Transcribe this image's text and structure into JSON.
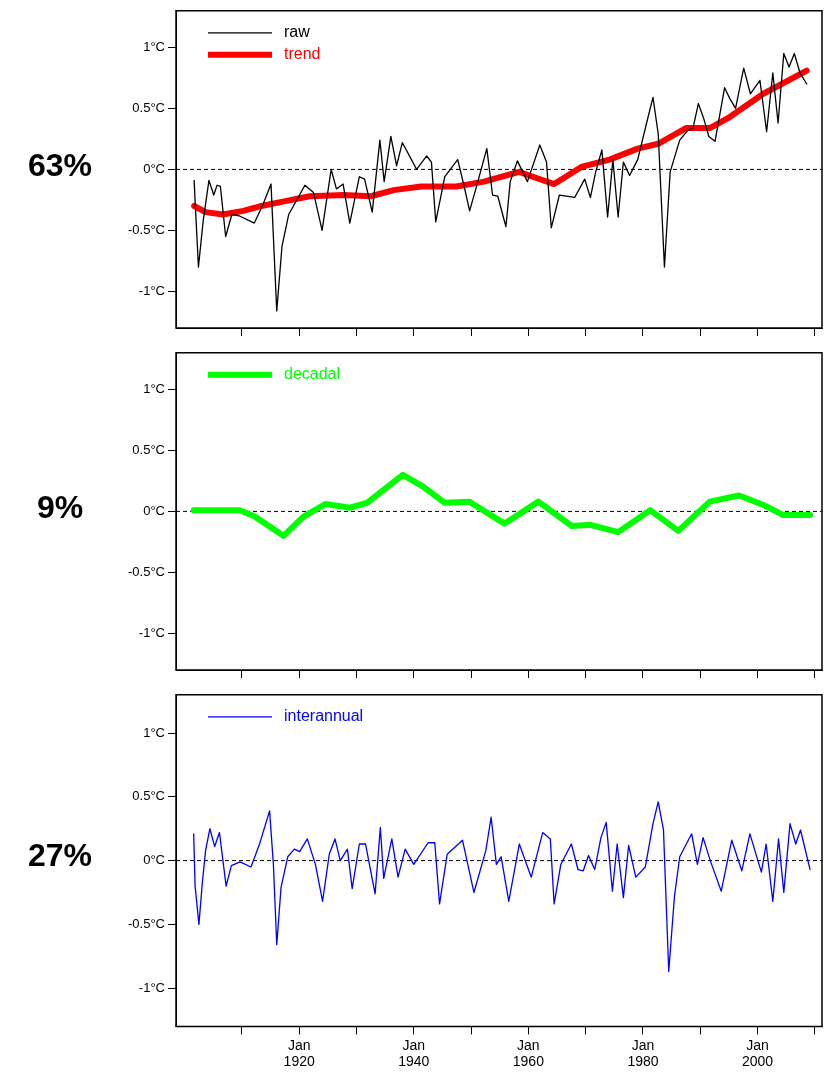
{
  "chart_data": [
    {
      "type": "line",
      "annotations": [
        "63%"
      ],
      "legend": "top left",
      "tick_labels": "y",
      "grid": false,
      "xlim": [
        "1898-07",
        "2011-04"
      ],
      "ylim": [
        -1.3,
        1.3
      ],
      "xticks": [
        {
          "value": "1910-01",
          "label": null
        },
        {
          "value": "1920-01",
          "label": null
        },
        {
          "value": "1930-01",
          "label": null
        },
        {
          "value": "1940-01",
          "label": null
        },
        {
          "value": "1950-01",
          "label": null
        },
        {
          "value": "1960-01",
          "label": null
        },
        {
          "value": "1970-01",
          "label": null
        },
        {
          "value": "1980-01",
          "label": null
        },
        {
          "value": "1990-01",
          "label": null
        },
        {
          "value": "2000-01",
          "label": null
        },
        {
          "value": "2010-01",
          "label": null
        }
      ],
      "yticks": [
        {
          "value": -1,
          "label": "-1°C"
        },
        {
          "value": -0.5,
          "label": "-0.5°C"
        },
        {
          "value": 0,
          "label": "0°C"
        },
        {
          "value": 0.5,
          "label": "0.5°C"
        },
        {
          "value": 1,
          "label": "1°C"
        }
      ],
      "ref_lines": [
        {
          "axis": "y",
          "value": 0,
          "color": "#000000",
          "line_style": "dashed"
        }
      ],
      "series": [
        {
          "name": "raw",
          "color": "#000000",
          "x": [
            "1901-09",
            "1901-11",
            "1902-06",
            "1903-04",
            "1904-04",
            "1905-02",
            "1905-09",
            "1906-04",
            "1907-03",
            "1908-04",
            "1909-07",
            "1912-03",
            "1913-09",
            "1915-02",
            "1916-02",
            "1917-01",
            "1918-03",
            "1921-01",
            "1922-07",
            "1924-01",
            "1925-08",
            "1926-07",
            "1927-09",
            "1928-11",
            "1930-07",
            "1931-06",
            "1932-10",
            "1934-02",
            "1934-11",
            "1936-01",
            "1937-01",
            "1938-01",
            "1940-07",
            "1942-04",
            "1943-02",
            "1943-11",
            "1945-06",
            "1947-09",
            "1948-10",
            "1949-10",
            "1950-11",
            "1952-10",
            "1953-10",
            "1954-09",
            "1956-02",
            "1956-11",
            "1958-02",
            "1959-11",
            "1962-01",
            "1963-03",
            "1964-01",
            "1965-06",
            "1968-02",
            "1969-11",
            "1970-11",
            "1971-10",
            "1972-11",
            "1973-11",
            "1974-10",
            "1975-09",
            "1976-08",
            "1977-09",
            "1979-02",
            "1980-08",
            "1981-10",
            "1982-09",
            "1983-10",
            "1984-10",
            "1986-06",
            "1987-11",
            "1988-10",
            "1989-09",
            "1990-08",
            "1991-07",
            "1992-08",
            "1994-04",
            "1995-03",
            "1996-03",
            "1997-08",
            "1998-10",
            "2000-06",
            "2001-08",
            "2002-09",
            "2003-08",
            "2004-08",
            "2005-07",
            "2006-06",
            "2007-06",
            "2008-08"
          ],
          "values": [
            -0.09,
            -0.26,
            -0.8,
            -0.42,
            -0.09,
            -0.21,
            -0.13,
            -0.14,
            -0.55,
            -0.37,
            -0.38,
            -0.44,
            -0.29,
            -0.12,
            -1.16,
            -0.63,
            -0.37,
            -0.13,
            -0.19,
            -0.5,
            0.0,
            -0.16,
            -0.12,
            -0.44,
            -0.06,
            -0.08,
            -0.35,
            0.24,
            -0.1,
            0.27,
            0.03,
            0.22,
            0.0,
            0.11,
            0.06,
            -0.43,
            -0.06,
            0.08,
            -0.13,
            -0.34,
            -0.16,
            0.17,
            -0.21,
            -0.22,
            -0.47,
            -0.1,
            0.07,
            -0.1,
            0.2,
            0.06,
            -0.48,
            -0.21,
            -0.23,
            -0.08,
            -0.23,
            -0.02,
            0.16,
            -0.39,
            0.08,
            -0.39,
            0.06,
            -0.05,
            0.08,
            0.37,
            0.59,
            0.29,
            -0.8,
            -0.02,
            0.24,
            0.32,
            0.34,
            0.54,
            0.42,
            0.27,
            0.23,
            0.67,
            0.58,
            0.5,
            0.83,
            0.62,
            0.73,
            0.31,
            0.79,
            0.38,
            0.95,
            0.84,
            0.95,
            0.79,
            0.7
          ]
        },
        {
          "name": "trend",
          "color": "#ff0000",
          "x": [
            "1901-09",
            "1903-09",
            "1906-09",
            "1910-04",
            "1913-06",
            "1917-08",
            "1921-11",
            "1927-11",
            "1932-07",
            "1936-07",
            "1941-04",
            "1947-06",
            "1952-04",
            "1958-06",
            "1960-03",
            "1964-07",
            "1969-04",
            "1974-03",
            "1979-02",
            "1982-09",
            "1987-08",
            "1991-10",
            "1994-11",
            "2001-01",
            "2008-08"
          ],
          "values": [
            -0.3,
            -0.35,
            -0.37,
            -0.34,
            -0.3,
            -0.26,
            -0.22,
            -0.21,
            -0.22,
            -0.17,
            -0.14,
            -0.14,
            -0.1,
            -0.02,
            -0.05,
            -0.12,
            0.02,
            0.08,
            0.17,
            0.21,
            0.34,
            0.34,
            0.42,
            0.62,
            0.81
          ]
        }
      ]
    },
    {
      "type": "line",
      "annotations": [
        "9%"
      ],
      "legend": "top left",
      "tick_labels": "y",
      "grid": false,
      "xlim": [
        "1898-07",
        "2011-04"
      ],
      "ylim": [
        -1.3,
        1.3
      ],
      "xticks": [
        {
          "value": "1910-01",
          "label": null
        },
        {
          "value": "1920-01",
          "label": null
        },
        {
          "value": "1930-01",
          "label": null
        },
        {
          "value": "1940-01",
          "label": null
        },
        {
          "value": "1950-01",
          "label": null
        },
        {
          "value": "1960-01",
          "label": null
        },
        {
          "value": "1970-01",
          "label": null
        },
        {
          "value": "1980-01",
          "label": null
        },
        {
          "value": "1990-01",
          "label": null
        },
        {
          "value": "2000-01",
          "label": null
        },
        {
          "value": "2010-01",
          "label": null
        }
      ],
      "yticks": [
        {
          "value": -1,
          "label": "-1°C"
        },
        {
          "value": -0.5,
          "label": "-0.5°C"
        },
        {
          "value": 0,
          "label": "0°C"
        },
        {
          "value": 0.5,
          "label": "0.5°C"
        },
        {
          "value": 1,
          "label": "1°C"
        }
      ],
      "ref_lines": [
        {
          "axis": "y",
          "value": 0,
          "color": "#000000",
          "line_style": "dashed"
        }
      ],
      "series": [
        {
          "name": "decadal",
          "color": "#00ff00",
          "x": [
            "1901-08",
            "1909-08",
            "1912-03",
            "1917-04",
            "1920-11",
            "1924-08",
            "1928-11",
            "1931-11",
            "1938-02",
            "1941-06",
            "1945-06",
            "1949-09",
            "1955-11",
            "1961-10",
            "1967-08",
            "1970-11",
            "1975-09",
            "1981-04",
            "1986-03",
            "1991-09",
            "1996-10",
            "2001-03",
            "2004-07",
            "2009-03"
          ],
          "values": [
            0.01,
            0.01,
            -0.04,
            -0.2,
            -0.04,
            0.06,
            0.03,
            0.07,
            0.3,
            0.21,
            0.07,
            0.08,
            -0.1,
            0.08,
            -0.12,
            -0.11,
            -0.17,
            0.01,
            -0.16,
            0.08,
            0.13,
            0.05,
            -0.03,
            -0.03
          ]
        }
      ]
    },
    {
      "type": "line",
      "annotations": [
        "27%"
      ],
      "legend": "top left",
      "grid": false,
      "xlim": [
        "1898-07",
        "2011-04"
      ],
      "ylim": [
        -1.3,
        1.3
      ],
      "xticks": [
        {
          "value": "1910-01",
          "label": null
        },
        {
          "value": "1920-01",
          "label": "Jan 1920"
        },
        {
          "value": "1930-01",
          "label": null
        },
        {
          "value": "1940-01",
          "label": "Jan 1940"
        },
        {
          "value": "1950-01",
          "label": null
        },
        {
          "value": "1960-01",
          "label": "Jan 1960"
        },
        {
          "value": "1970-01",
          "label": null
        },
        {
          "value": "1980-01",
          "label": "Jan 1980"
        },
        {
          "value": "1990-01",
          "label": null
        },
        {
          "value": "2000-01",
          "label": "Jan 2000"
        },
        {
          "value": "2010-01",
          "label": null
        }
      ],
      "yticks": [
        {
          "value": -1,
          "label": "-1°C"
        },
        {
          "value": -0.5,
          "label": "-0.5°C"
        },
        {
          "value": 0,
          "label": "0°C"
        },
        {
          "value": 0.5,
          "label": "0.5°C"
        },
        {
          "value": 1,
          "label": "1°C"
        }
      ],
      "ref_lines": [
        {
          "axis": "y",
          "value": 0,
          "color": "#000000",
          "line_style": "dashed"
        }
      ],
      "series": [
        {
          "name": "interannual",
          "color": "#0000ff",
          "x": [
            "1901-08",
            "1901-11",
            "1902-07",
            "1903-02",
            "1903-09",
            "1904-06",
            "1905-04",
            "1906-02",
            "1907-04",
            "1908-03",
            "1909-09",
            "1911-08",
            "1913-02",
            "1914-11",
            "1915-07",
            "1916-02",
            "1916-11",
            "1918-01",
            "1919-03",
            "1920-02",
            "1921-06",
            "1922-11",
            "1924-02",
            "1925-04",
            "1926-04",
            "1927-03",
            "1928-06",
            "1929-04",
            "1930-07",
            "1931-08",
            "1933-04",
            "1934-03",
            "1934-10",
            "1936-03",
            "1937-04",
            "1938-07",
            "1940-01",
            "1942-07",
            "1943-09",
            "1944-07",
            "1945-11",
            "1948-07",
            "1950-07",
            "1952-08",
            "1953-07",
            "1954-06",
            "1955-04",
            "1956-08",
            "1958-06",
            "1960-07",
            "1962-07",
            "1963-11",
            "1964-07",
            "1965-09",
            "1967-07",
            "1968-09",
            "1969-08",
            "1970-07",
            "1971-08",
            "1972-09",
            "1973-08",
            "1974-09",
            "1975-07",
            "1976-08",
            "1977-07",
            "1978-10",
            "1980-06",
            "1981-10",
            "1982-09",
            "1983-08",
            "1984-07",
            "1985-07",
            "1986-06",
            "1988-07",
            "1989-07",
            "1990-07",
            "1991-10",
            "1993-09",
            "1995-07",
            "1997-04",
            "1998-09",
            "2000-09",
            "2001-07",
            "2002-09",
            "2003-09",
            "2004-08",
            "2005-09",
            "2006-09",
            "2007-07",
            "2009-03"
          ],
          "values": [
            0.21,
            -0.2,
            -0.5,
            -0.18,
            0.08,
            0.25,
            0.11,
            0.22,
            -0.2,
            -0.04,
            -0.01,
            -0.05,
            0.13,
            0.39,
            -0.03,
            -0.66,
            -0.21,
            0.03,
            0.09,
            0.07,
            0.17,
            -0.03,
            -0.32,
            0.05,
            0.17,
            0.0,
            0.09,
            -0.22,
            0.13,
            0.13,
            -0.26,
            0.26,
            -0.14,
            0.17,
            -0.13,
            0.09,
            -0.03,
            0.14,
            0.14,
            -0.34,
            0.05,
            0.16,
            -0.25,
            0.08,
            0.34,
            -0.03,
            0.03,
            -0.32,
            0.13,
            -0.13,
            0.22,
            0.17,
            -0.34,
            -0.03,
            0.13,
            -0.07,
            -0.08,
            0.04,
            -0.07,
            0.18,
            0.3,
            -0.24,
            0.13,
            -0.29,
            0.12,
            -0.13,
            -0.05,
            0.29,
            0.46,
            0.24,
            -0.87,
            -0.28,
            0.03,
            0.21,
            -0.03,
            0.18,
            0.0,
            -0.24,
            0.16,
            -0.08,
            0.21,
            -0.09,
            0.13,
            -0.32,
            0.17,
            -0.25,
            0.29,
            0.13,
            0.24,
            -0.07
          ]
        }
      ]
    }
  ]
}
